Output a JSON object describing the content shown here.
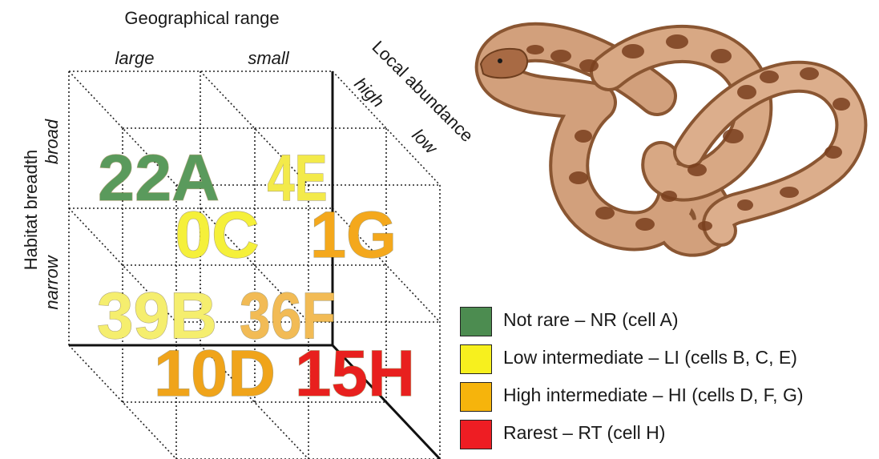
{
  "labels": {
    "geo_range": "Geographical range",
    "large": "large",
    "small": "small",
    "local_abundance": "Local abundance",
    "high": "high",
    "low": "low",
    "habitat_breadth": "Habitat breadth",
    "broad": "broad",
    "narrow": "narrow"
  },
  "cells": {
    "A": {
      "text": "22A",
      "color": "#5a9a5c"
    },
    "E": {
      "text": "4E",
      "color": "#f3ea4a"
    },
    "C": {
      "text": "0C",
      "color": "#f5f03a"
    },
    "G": {
      "text": "1G",
      "color": "#f4a81c"
    },
    "B": {
      "text": "39B",
      "color": "#f5ee6e"
    },
    "F": {
      "text": "36F",
      "color": "#f2bb55"
    },
    "D": {
      "text": "10D",
      "color": "#f0a41a"
    },
    "H": {
      "text": "15H",
      "color": "#e8201e"
    }
  },
  "legend": [
    {
      "label": "Not rare – NR (cell A)",
      "color": "#4c8c50"
    },
    {
      "label": "Low intermediate – LI (cells B, C, E)",
      "color": "#f7f01e"
    },
    {
      "label": "High intermediate – HI (cells D, F, G)",
      "color": "#f6b40c"
    },
    {
      "label": "Rarest – RT (cell H)",
      "color": "#ee1d23"
    }
  ]
}
